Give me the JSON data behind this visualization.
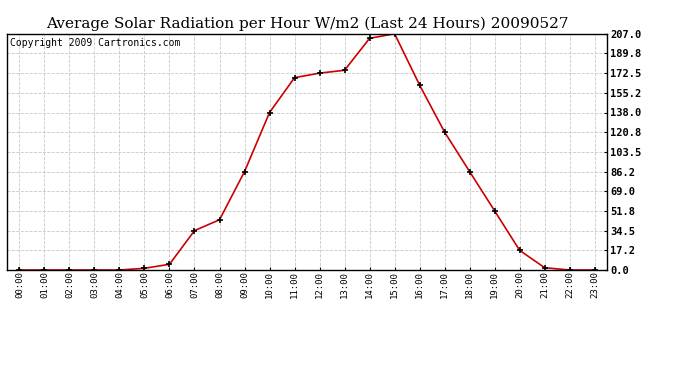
{
  "title": "Average Solar Radiation per Hour W/m2 (Last 24 Hours) 20090527",
  "copyright": "Copyright 2009 Cartronics.com",
  "hours": [
    "00:00",
    "01:00",
    "02:00",
    "03:00",
    "04:00",
    "05:00",
    "06:00",
    "07:00",
    "08:00",
    "09:00",
    "10:00",
    "11:00",
    "12:00",
    "13:00",
    "14:00",
    "15:00",
    "16:00",
    "17:00",
    "18:00",
    "19:00",
    "20:00",
    "21:00",
    "22:00",
    "23:00"
  ],
  "values": [
    0.0,
    0.0,
    0.0,
    0.0,
    0.0,
    1.5,
    5.0,
    34.5,
    44.0,
    86.2,
    138.0,
    168.5,
    172.5,
    175.0,
    203.0,
    207.0,
    162.0,
    120.8,
    86.2,
    51.8,
    17.2,
    2.0,
    0.0,
    0.0
  ],
  "yticks": [
    0.0,
    17.2,
    34.5,
    51.8,
    69.0,
    86.2,
    103.5,
    120.8,
    138.0,
    155.2,
    172.5,
    189.8,
    207.0
  ],
  "ymax": 207.0,
  "line_color": "#cc0000",
  "marker": "+",
  "marker_color": "#000000",
  "grid_color": "#c8c8c8",
  "background_color": "#ffffff",
  "title_fontsize": 11,
  "copyright_fontsize": 7,
  "figwidth": 6.9,
  "figheight": 3.75,
  "dpi": 100
}
